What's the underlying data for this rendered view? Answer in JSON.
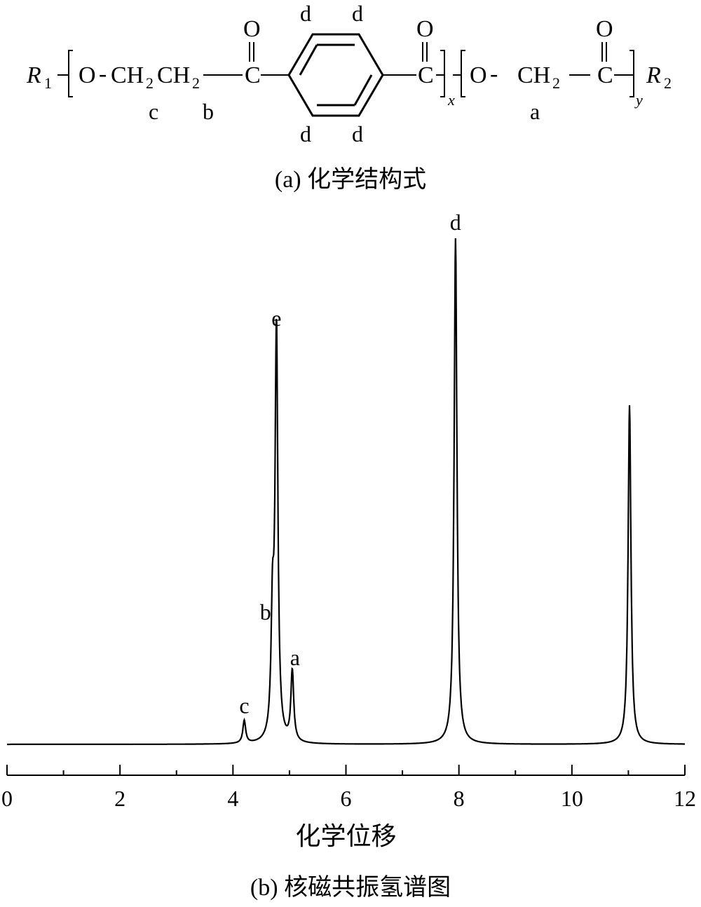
{
  "structure": {
    "r1": "R",
    "r1_sub": "1",
    "r2": "R",
    "r2_sub": "2",
    "o": "O",
    "c": "C",
    "ch2_a": "CH",
    "ch2_b": "CH",
    "ch2_c": "CH",
    "ch2_sub": "2",
    "x": "x",
    "y": "y",
    "dash": "-",
    "carbonyl_o": "O",
    "labels": {
      "c": "c",
      "b": "b",
      "a": "a",
      "d": "d"
    },
    "caption": "(a)  化学结构式"
  },
  "spectrum": {
    "caption": "(b)  核磁共振氢谱图"
  },
  "chart_data": {
    "type": "line",
    "xlabel": "化学位移",
    "ylabel": "",
    "title": "",
    "xlim": [
      0,
      12
    ],
    "xticks": [
      0,
      2,
      4,
      6,
      8,
      10,
      12
    ],
    "xtick_labels": [
      "0",
      "2",
      "4",
      "6",
      "8",
      "10",
      "12"
    ],
    "grid": false,
    "baseline": 0.0,
    "peaks": [
      {
        "label": "c",
        "shift": 4.2,
        "intensity": 0.045
      },
      {
        "label": "b",
        "shift": 4.7,
        "intensity": 0.23
      },
      {
        "label": "e",
        "shift": 4.77,
        "intensity": 0.81
      },
      {
        "label": "a",
        "shift": 5.05,
        "intensity": 0.14
      },
      {
        "label": "d",
        "shift": 7.94,
        "intensity": 1.0
      },
      {
        "label": "",
        "shift": 11.02,
        "intensity": 0.67
      }
    ]
  }
}
